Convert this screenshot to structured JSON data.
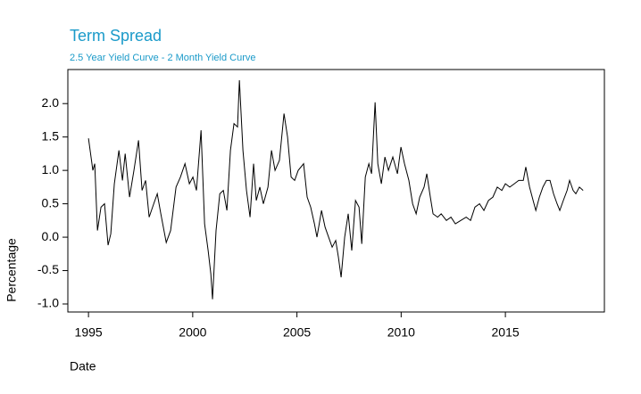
{
  "chart_data": {
    "type": "line",
    "title": "Term Spread",
    "subtitle": "2.5 Year Yield Curve - 2 Month Yield Curve",
    "x_label": "Date",
    "y_label": "Percentage",
    "title_color": "#1a9ac9",
    "color": "#000000",
    "xlim": [
      1994.01,
      2019.75
    ],
    "ylim": [
      -1.12,
      2.51
    ],
    "xticks": [
      1995,
      2000,
      2005,
      2010,
      2015
    ],
    "yticks": [
      {
        "value": -1.0,
        "label": "-1.0"
      },
      {
        "value": -0.5,
        "label": "-0.5"
      },
      {
        "value": 0.0,
        "label": "0.0"
      },
      {
        "value": 0.5,
        "label": "0.5"
      },
      {
        "value": 1.0,
        "label": "1.0"
      },
      {
        "value": 1.5,
        "label": "1.5"
      },
      {
        "value": 2.0,
        "label": "2.0"
      }
    ],
    "x": [
      1995.0,
      1995.21,
      1995.3,
      1995.43,
      1995.6,
      1995.77,
      1995.94,
      1996.07,
      1996.24,
      1996.46,
      1996.63,
      1996.76,
      1996.97,
      1997.18,
      1997.4,
      1997.57,
      1997.74,
      1997.91,
      1998.13,
      1998.3,
      1998.47,
      1998.73,
      1998.94,
      1999.2,
      1999.41,
      1999.63,
      1999.84,
      2000.01,
      2000.18,
      2000.4,
      2000.57,
      2000.74,
      2000.87,
      2000.95,
      2001.12,
      2001.3,
      2001.47,
      2001.64,
      2001.81,
      2001.98,
      2002.15,
      2002.24,
      2002.41,
      2002.58,
      2002.75,
      2002.92,
      2003.05,
      2003.22,
      2003.39,
      2003.61,
      2003.78,
      2003.95,
      2004.16,
      2004.38,
      2004.55,
      2004.72,
      2004.89,
      2005.06,
      2005.32,
      2005.49,
      2005.66,
      2005.84,
      2005.96,
      2006.18,
      2006.35,
      2006.52,
      2006.69,
      2006.86,
      2006.99,
      2007.12,
      2007.29,
      2007.46,
      2007.63,
      2007.81,
      2007.98,
      2008.11,
      2008.28,
      2008.45,
      2008.58,
      2008.75,
      2008.88,
      2009.05,
      2009.22,
      2009.39,
      2009.6,
      2009.82,
      2009.99,
      2010.16,
      2010.37,
      2010.55,
      2010.72,
      2010.89,
      2011.1,
      2011.23,
      2011.4,
      2011.53,
      2011.75,
      2011.92,
      2012.17,
      2012.39,
      2012.6,
      2012.86,
      2013.12,
      2013.33,
      2013.54,
      2013.76,
      2013.97,
      2014.19,
      2014.4,
      2014.61,
      2014.83,
      2015.0,
      2015.21,
      2015.43,
      2015.64,
      2015.86,
      2015.98,
      2016.16,
      2016.33,
      2016.46,
      2016.63,
      2016.8,
      2016.97,
      2017.14,
      2017.31,
      2017.48,
      2017.61,
      2017.78,
      2017.96,
      2018.08,
      2018.25,
      2018.38,
      2018.55,
      2018.73
    ],
    "values": [
      1.48,
      1.0,
      1.1,
      0.1,
      0.45,
      0.5,
      -0.12,
      0.05,
      0.8,
      1.3,
      0.85,
      1.25,
      0.6,
      1.0,
      1.45,
      0.7,
      0.85,
      0.3,
      0.5,
      0.65,
      0.35,
      -0.08,
      0.1,
      0.75,
      0.9,
      1.1,
      0.8,
      0.9,
      0.7,
      1.6,
      0.2,
      -0.2,
      -0.55,
      -0.93,
      0.1,
      0.65,
      0.7,
      0.4,
      1.3,
      1.7,
      1.65,
      2.35,
      1.3,
      0.7,
      0.3,
      1.1,
      0.55,
      0.75,
      0.5,
      0.75,
      1.3,
      1.0,
      1.15,
      1.85,
      1.5,
      0.9,
      0.85,
      1.0,
      1.1,
      0.6,
      0.45,
      0.2,
      0.0,
      0.4,
      0.15,
      0.0,
      -0.15,
      -0.05,
      -0.3,
      -0.6,
      0.0,
      0.35,
      -0.2,
      0.55,
      0.45,
      -0.1,
      0.9,
      1.1,
      0.95,
      2.02,
      1.1,
      0.8,
      1.2,
      1.0,
      1.2,
      0.95,
      1.35,
      1.1,
      0.85,
      0.5,
      0.35,
      0.6,
      0.75,
      0.95,
      0.6,
      0.35,
      0.3,
      0.35,
      0.25,
      0.3,
      0.2,
      0.25,
      0.3,
      0.25,
      0.45,
      0.5,
      0.4,
      0.55,
      0.6,
      0.75,
      0.7,
      0.8,
      0.75,
      0.8,
      0.85,
      0.85,
      1.05,
      0.75,
      0.55,
      0.4,
      0.6,
      0.75,
      0.85,
      0.85,
      0.65,
      0.5,
      0.4,
      0.55,
      0.7,
      0.85,
      0.7,
      0.65,
      0.75,
      0.7
    ]
  }
}
